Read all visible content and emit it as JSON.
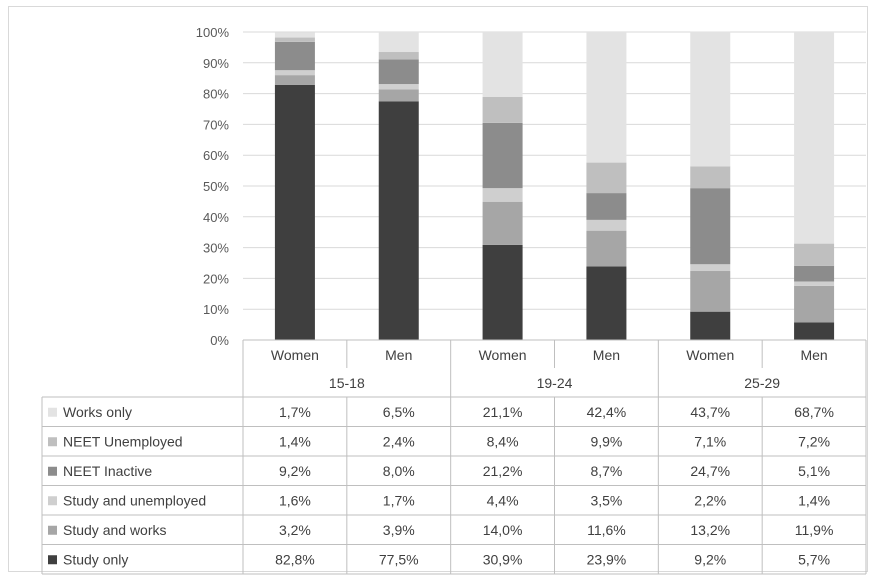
{
  "chart_data": {
    "type": "bar",
    "stacked": true,
    "groups": [
      {
        "label": "15-18",
        "categories": [
          "Women",
          "Men"
        ]
      },
      {
        "label": "19-24",
        "categories": [
          "Women",
          "Men"
        ]
      },
      {
        "label": "25-29",
        "categories": [
          "Women",
          "Men"
        ]
      }
    ],
    "categories": [
      "Women",
      "Men",
      "Women",
      "Men",
      "Women",
      "Men"
    ],
    "series": [
      {
        "name": "Study only",
        "color": "#3f3f3f",
        "values": [
          82.8,
          77.5,
          30.9,
          23.9,
          9.2,
          5.7
        ],
        "labels": [
          "82,8%",
          "77,5%",
          "30,9%",
          "23,9%",
          "9,2%",
          "5,7%"
        ]
      },
      {
        "name": "Study and works",
        "color": "#a6a6a6",
        "values": [
          3.2,
          3.9,
          14.0,
          11.6,
          13.2,
          11.9
        ],
        "labels": [
          "3,2%",
          "3,9%",
          "14,0%",
          "11,6%",
          "13,2%",
          "11,9%"
        ]
      },
      {
        "name": "Study and unemployed",
        "color": "#cfcfcf",
        "values": [
          1.6,
          1.7,
          4.4,
          3.5,
          2.2,
          1.4
        ],
        "labels": [
          "1,6%",
          "1,7%",
          "4,4%",
          "3,5%",
          "2,2%",
          "1,4%"
        ]
      },
      {
        "name": "NEET Inactive",
        "color": "#8c8c8c",
        "values": [
          9.2,
          8.0,
          21.2,
          8.7,
          24.7,
          5.1
        ],
        "labels": [
          "9,2%",
          "8,0%",
          "21,2%",
          "8,7%",
          "24,7%",
          "5,1%"
        ]
      },
      {
        "name": "NEET Unemployed",
        "color": "#bfbfbf",
        "values": [
          1.4,
          2.4,
          8.4,
          9.9,
          7.1,
          7.2
        ],
        "labels": [
          "1,4%",
          "2,4%",
          "8,4%",
          "9,9%",
          "7,1%",
          "7,2%"
        ]
      },
      {
        "name": "Works only",
        "color": "#e3e3e3",
        "values": [
          1.7,
          6.5,
          21.1,
          42.4,
          43.7,
          68.7
        ],
        "labels": [
          "1,7%",
          "6,5%",
          "21,1%",
          "42,4%",
          "43,7%",
          "68,7%"
        ]
      }
    ],
    "table_order": [
      "Works only",
      "NEET Unemployed",
      "NEET Inactive",
      "Study and unemployed",
      "Study and works",
      "Study only"
    ],
    "yticks": [
      "0%",
      "10%",
      "20%",
      "30%",
      "40%",
      "50%",
      "60%",
      "70%",
      "80%",
      "90%",
      "100%"
    ],
    "ylim": [
      0,
      100
    ],
    "grid": true,
    "legend": "data-table"
  }
}
